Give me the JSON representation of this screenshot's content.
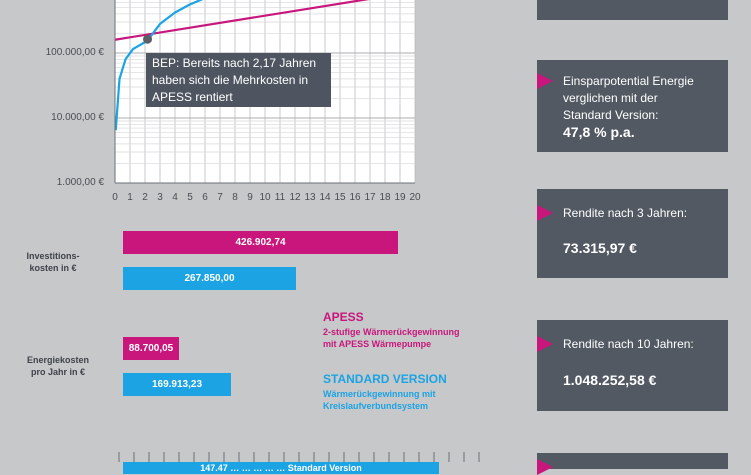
{
  "chart_data": {
    "type": "line",
    "y_scale": "log",
    "y_tick_labels": [
      "1.000,00 €",
      "10.000,00 €",
      "100.000,00 €"
    ],
    "y_ticks": [
      1000,
      10000,
      100000
    ],
    "x_tick_labels": [
      "0",
      "1",
      "2",
      "3",
      "4",
      "5",
      "6",
      "7",
      "8",
      "9",
      "10",
      "11",
      "12",
      "13",
      "14",
      "15",
      "16",
      "17",
      "18",
      "19",
      "20"
    ],
    "xlim": [
      0,
      20
    ],
    "grid": true,
    "series": [
      {
        "color": "#c8167c",
        "points": [
          [
            0,
            160000
          ],
          [
            20,
            880000
          ]
        ]
      },
      {
        "color": "#1ca3e3",
        "points": [
          [
            0.05,
            6500
          ],
          [
            0.3,
            40000
          ],
          [
            0.7,
            80000
          ],
          [
            1.2,
            115000
          ],
          [
            2.17,
            155000
          ],
          [
            3,
            280000
          ],
          [
            4,
            420000
          ],
          [
            5,
            560000
          ],
          [
            6.5,
            780000
          ]
        ]
      }
    ],
    "bep": {
      "x": 2.17,
      "y": 163000,
      "note": "BEP: Bereits nach 2,17 Jahren haben sich die Mehrkosten in APESS rentiert"
    }
  },
  "bars": {
    "invest_label": "Investitions-\nkosten in €",
    "invest_apess": {
      "label": "426.902,74",
      "value": 426902.74
    },
    "invest_standard": {
      "label": "267.850,00",
      "value": 267850.0
    },
    "energy_label": "Energiekosten\npro Jahr in €",
    "energy_apess": {
      "label": "88.700,05",
      "value": 88700.05
    },
    "energy_standard": {
      "label": "169.913,23",
      "value": 169913.23
    },
    "bottom_partial_label": "147.47 … … … … … Standard Version"
  },
  "legend": {
    "apess_title": "APESS",
    "apess_desc": "2-stufige Wärmerückgewinnung\nmit APESS Wärmepumpe",
    "standard_title": "STANDARD VERSION",
    "standard_desc": "Wärmerückgewinnung mit\nKreislaufverbundsystem"
  },
  "cards": [
    {
      "label": "Einsparpotential Energie\nverglichen mit der\nStandard Version:",
      "value": "47,8 % p.a."
    },
    {
      "label": "Rendite nach 3 Jahren:",
      "value": "73.315,97 €"
    },
    {
      "label": "Rendite nach 10 Jahren:",
      "value": "1.048.252,58 €"
    }
  ],
  "colors": {
    "apess": "#c8167c",
    "standard": "#1ca3e3",
    "card": "#525962",
    "background": "#c7c8ca"
  }
}
